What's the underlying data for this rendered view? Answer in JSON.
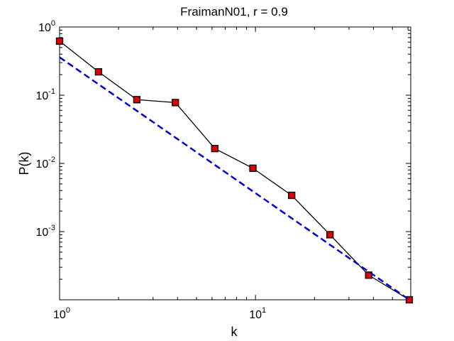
{
  "chart_data": {
    "type": "line",
    "title": "FraimanN01, r = 0.9",
    "xlabel": "k",
    "ylabel": "P(k)",
    "xscale": "log",
    "yscale": "log",
    "xlim": [
      1,
      62
    ],
    "ylim": [
      0.0001,
      1
    ],
    "grid": false,
    "x_ticks": [
      {
        "base": "10",
        "exp": "0",
        "value": 1
      },
      {
        "base": "10",
        "exp": "1",
        "value": 10
      }
    ],
    "y_ticks": [
      {
        "base": "10",
        "exp": "0",
        "value": 1
      },
      {
        "base": "10",
        "exp": "-1",
        "value": 0.1
      },
      {
        "base": "10",
        "exp": "-2",
        "value": 0.01
      },
      {
        "base": "10",
        "exp": "-3",
        "value": 0.001
      }
    ],
    "series": [
      {
        "color": "#000000",
        "marker_color": "#dd0000",
        "line_style": "solid",
        "marker": "square",
        "x": [
          1.0,
          1.58,
          2.48,
          3.9,
          6.2,
          9.7,
          15.3,
          24.0,
          37.8,
          61.0
        ],
        "y": [
          0.62,
          0.22,
          0.086,
          0.078,
          0.0165,
          0.0085,
          0.0034,
          0.0009,
          0.00023,
          0.0001
        ]
      },
      {
        "color": "#0000cc",
        "line_style": "dashed",
        "marker": "none",
        "x": [
          1.0,
          61.0
        ],
        "y": [
          0.36,
          0.0001
        ]
      }
    ]
  }
}
